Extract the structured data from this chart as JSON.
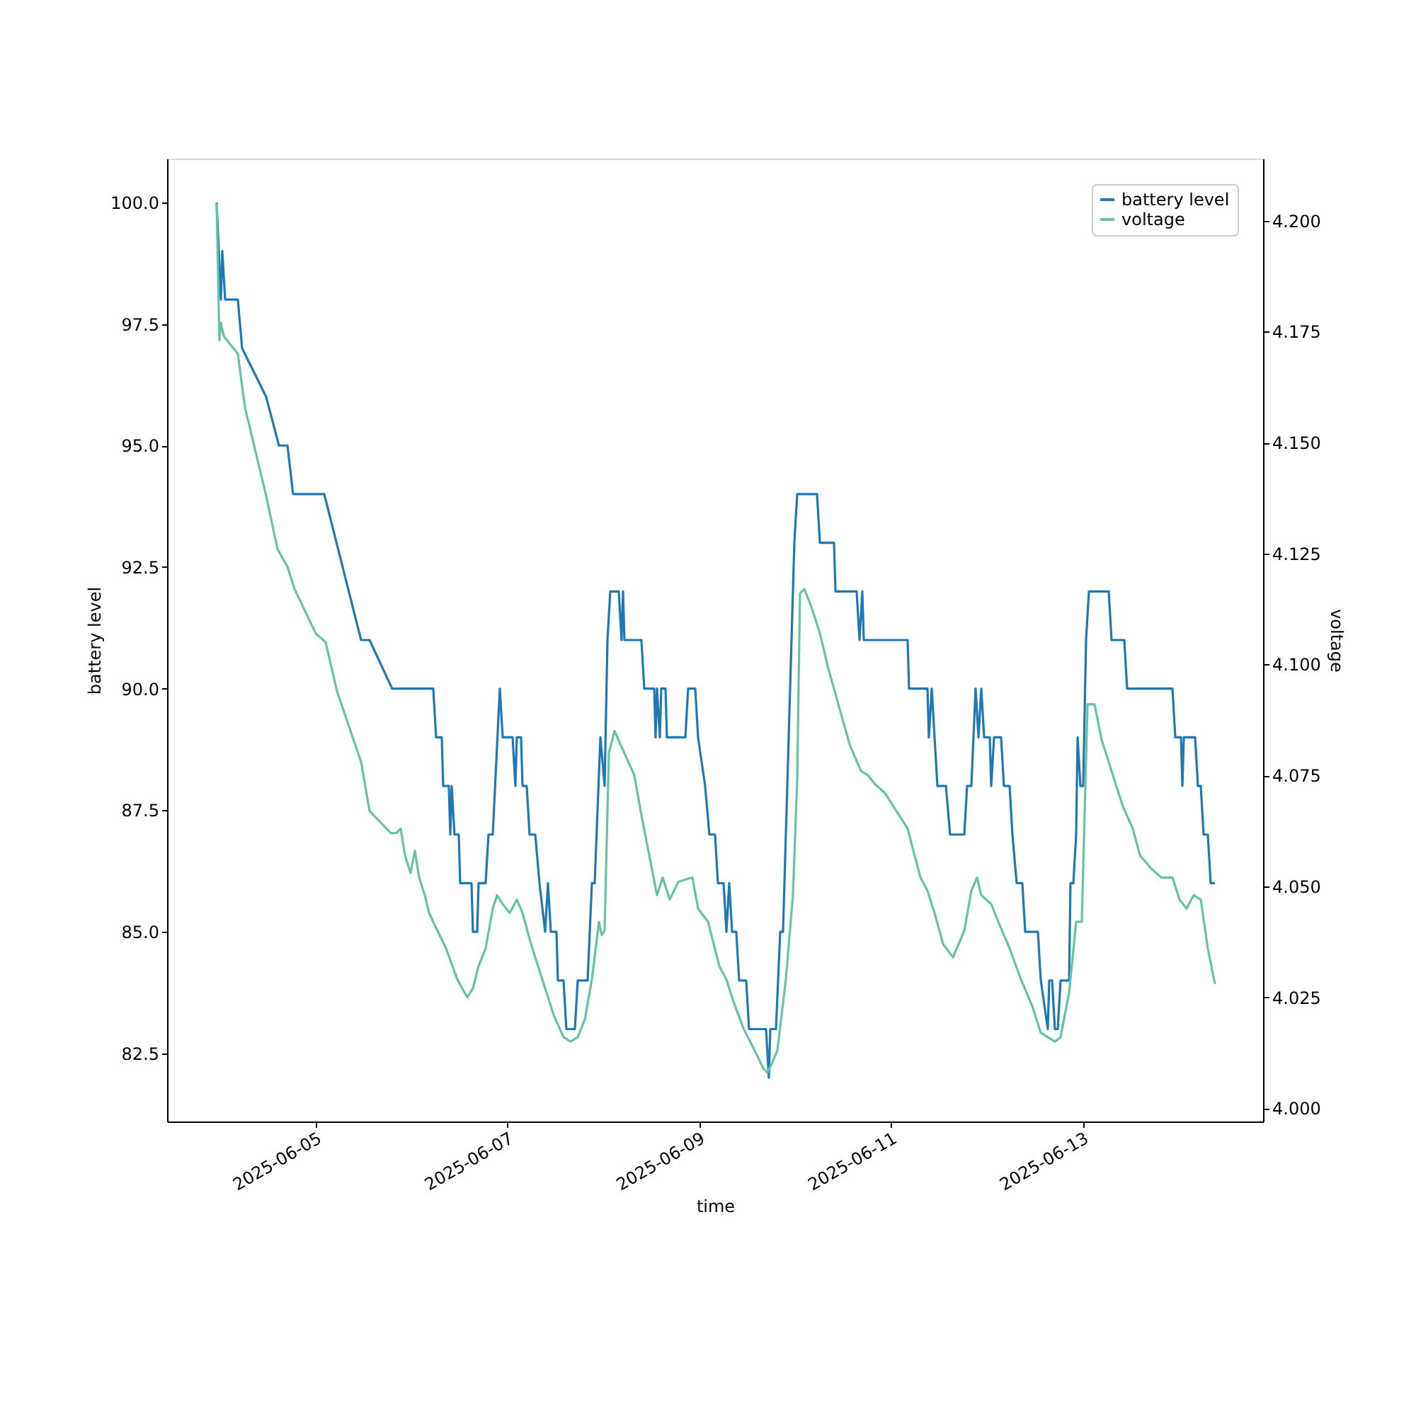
{
  "chart_data": {
    "type": "line",
    "xlabel": "time",
    "ylabel": "battery level",
    "y2label": "voltage",
    "xlim": [
      "2025-06-03T10:47",
      "2025-06-14T21:10"
    ],
    "xticks": [
      "2025-06-05",
      "2025-06-07",
      "2025-06-09",
      "2025-06-11",
      "2025-06-13"
    ],
    "ylim": [
      81.1,
      100.9
    ],
    "yticks": [
      {
        "value": 82.5,
        "label": "82.5"
      },
      {
        "value": 85,
        "label": "85.0"
      },
      {
        "value": 87.5,
        "label": "87.5"
      },
      {
        "value": 90,
        "label": "90.0"
      },
      {
        "value": 92.5,
        "label": "92.5"
      },
      {
        "value": 95,
        "label": "95.0"
      },
      {
        "value": 97.5,
        "label": "97.5"
      },
      {
        "value": 100,
        "label": "100.0"
      }
    ],
    "y2lim": [
      3.997,
      4.214
    ],
    "y2ticks": [
      {
        "value": 4.0,
        "label": "4.000"
      },
      {
        "value": 4.025,
        "label": "4.025"
      },
      {
        "value": 4.05,
        "label": "4.050"
      },
      {
        "value": 4.075,
        "label": "4.075"
      },
      {
        "value": 4.1,
        "label": "4.100"
      },
      {
        "value": 4.125,
        "label": "4.125"
      },
      {
        "value": 4.15,
        "label": "4.150"
      },
      {
        "value": 4.175,
        "label": "4.175"
      },
      {
        "value": 4.2,
        "label": "4.200"
      }
    ],
    "legend": "top right",
    "marker": "none",
    "line_style": "solid",
    "series": [
      {
        "name": "battery level",
        "color": "#1f77b4",
        "x": [
          "2025-06-03T23:11",
          "2025-06-04T00:15",
          "2025-06-04T00:36",
          "2025-06-04T01:19",
          "2025-06-04T04:30",
          "2025-06-04T05:34",
          "2025-06-04T11:35",
          "2025-06-04T14:47",
          "2025-06-04T16:55",
          "2025-06-04T18:20",
          "2025-06-05T02:08",
          "2025-06-05T11:21",
          "2025-06-05T13:28",
          "2025-06-05T19:08",
          "2025-06-06T05:25",
          "2025-06-06T06:08",
          "2025-06-06T07:33",
          "2025-06-06T07:54",
          "2025-06-06T09:19",
          "2025-06-06T09:41",
          "2025-06-06T10:02",
          "2025-06-06T10:44",
          "2025-06-06T11:48",
          "2025-06-06T12:10",
          "2025-06-06T15:00",
          "2025-06-06T15:21",
          "2025-06-06T16:25",
          "2025-06-06T16:46",
          "2025-06-06T18:32",
          "2025-06-06T19:15",
          "2025-06-06T20:19",
          "2025-06-06T22:05",
          "2025-06-06T22:48",
          "2025-06-07T01:17",
          "2025-06-07T01:59",
          "2025-06-07T02:20",
          "2025-06-07T03:24",
          "2025-06-07T03:46",
          "2025-06-07T04:49",
          "2025-06-07T05:32",
          "2025-06-07T06:57",
          "2025-06-07T08:01",
          "2025-06-07T09:26",
          "2025-06-07T10:08",
          "2025-06-07T10:51",
          "2025-06-07T12:16",
          "2025-06-07T12:37",
          "2025-06-07T14:02",
          "2025-06-07T14:45",
          "2025-06-07T16:53",
          "2025-06-07T17:35",
          "2025-06-07T20:04",
          "2025-06-07T21:08",
          "2025-06-07T21:50",
          "2025-06-07T23:16",
          "2025-06-08T00:19",
          "2025-06-08T01:02",
          "2025-06-08T01:44",
          "2025-06-08T03:52",
          "2025-06-08T04:34",
          "2025-06-08T04:56",
          "2025-06-08T05:17",
          "2025-06-08T09:32",
          "2025-06-08T10:15",
          "2025-06-08T12:44",
          "2025-06-08T13:05",
          "2025-06-08T13:26",
          "2025-06-08T14:09",
          "2025-06-08T14:30",
          "2025-06-08T15:34",
          "2025-06-08T15:55",
          "2025-06-08T20:32",
          "2025-06-08T21:14",
          "2025-06-08T23:01",
          "2025-06-08T23:43",
          "2025-06-09T01:29",
          "2025-06-09T02:33",
          "2025-06-09T03:58",
          "2025-06-09T04:41",
          "2025-06-09T06:06",
          "2025-06-09T06:49",
          "2025-06-09T07:31",
          "2025-06-09T08:14",
          "2025-06-09T09:17",
          "2025-06-09T10:00",
          "2025-06-09T11:46",
          "2025-06-09T12:29",
          "2025-06-09T16:44",
          "2025-06-09T17:26",
          "2025-06-09T17:48",
          "2025-06-09T19:13",
          "2025-06-09T20:17",
          "2025-06-09T20:59",
          "2025-06-09T22:03",
          "2025-06-09T23:49",
          "2025-06-10T00:32",
          "2025-06-10T05:30",
          "2025-06-10T06:13",
          "2025-06-10T09:45",
          "2025-06-10T10:07",
          "2025-06-10T15:25",
          "2025-06-10T16:08",
          "2025-06-10T16:50",
          "2025-06-10T17:12",
          "2025-06-11T04:11",
          "2025-06-11T04:32",
          "2025-06-11T09:09",
          "2025-06-11T09:30",
          "2025-06-11T10:13",
          "2025-06-11T11:38",
          "2025-06-11T13:46",
          "2025-06-11T14:49",
          "2025-06-11T18:22",
          "2025-06-11T19:04",
          "2025-06-11T20:08",
          "2025-06-11T21:12",
          "2025-06-11T21:55",
          "2025-06-11T22:37",
          "2025-06-11T23:20",
          "2025-06-12T00:45",
          "2025-06-12T01:06",
          "2025-06-12T01:49",
          "2025-06-12T03:35",
          "2025-06-12T04:17",
          "2025-06-12T05:43",
          "2025-06-12T06:25",
          "2025-06-12T07:29",
          "2025-06-12T08:54",
          "2025-06-12T09:37",
          "2025-06-12T12:48",
          "2025-06-12T13:31",
          "2025-06-12T15:17",
          "2025-06-12T15:38",
          "2025-06-12T16:21",
          "2025-06-12T17:03",
          "2025-06-12T17:46",
          "2025-06-12T18:28",
          "2025-06-12T20:36",
          "2025-06-12T20:57",
          "2025-06-12T21:40",
          "2025-06-12T22:22",
          "2025-06-12T22:44",
          "2025-06-12T23:26",
          "2025-06-13T00:08",
          "2025-06-13T00:51",
          "2025-06-13T01:34",
          "2025-06-13T06:32",
          "2025-06-13T07:14",
          "2025-06-13T10:25",
          "2025-06-13T11:08",
          "2025-06-13T22:29",
          "2025-06-13T23:11",
          "2025-06-14T00:37",
          "2025-06-14T00:58",
          "2025-06-14T01:19",
          "2025-06-14T04:09",
          "2025-06-14T04:52",
          "2025-06-14T05:34",
          "2025-06-14T06:17",
          "2025-06-14T07:20",
          "2025-06-14T08:03",
          "2025-06-14T09:07"
        ],
        "values": [
          100,
          98,
          99,
          98,
          98,
          97,
          96,
          95,
          95,
          94,
          94,
          91,
          91,
          90,
          90,
          89,
          89,
          88,
          88,
          87,
          88,
          87,
          87,
          86,
          86,
          85,
          85,
          86,
          86,
          87,
          87,
          90,
          89,
          89,
          88,
          89,
          89,
          88,
          88,
          87,
          87,
          86,
          85,
          86,
          85,
          85,
          84,
          84,
          83,
          83,
          84,
          84,
          86,
          86,
          89,
          88,
          91,
          92,
          92,
          91,
          92,
          91,
          91,
          90,
          90,
          89,
          90,
          89,
          90,
          90,
          89,
          89,
          90,
          90,
          89,
          88,
          87,
          87,
          86,
          86,
          85,
          86,
          85,
          85,
          84,
          84,
          83,
          83,
          82,
          83,
          83,
          85,
          85,
          88,
          93,
          94,
          94,
          93,
          93,
          92,
          92,
          91,
          92,
          91,
          91,
          90,
          90,
          89,
          90,
          88,
          88,
          87,
          87,
          88,
          88,
          90,
          89,
          90,
          89,
          89,
          88,
          89,
          89,
          88,
          88,
          87,
          86,
          86,
          85,
          85,
          84,
          83,
          84,
          84,
          83,
          83,
          84,
          84,
          86,
          86,
          87,
          89,
          88,
          88,
          91,
          92,
          92,
          91,
          91,
          90,
          90,
          89,
          89,
          88,
          89,
          89,
          88,
          88,
          87,
          87,
          86,
          86
        ]
      },
      {
        "name": "voltage",
        "color": "#66c2a5",
        "axis": "y2",
        "x": [
          "2025-06-03T23:11",
          "2025-06-03T23:53",
          "2025-06-04T00:15",
          "2025-06-04T00:58",
          "2025-06-04T04:30",
          "2025-06-04T06:16",
          "2025-06-04T11:35",
          "2025-06-04T14:26",
          "2025-06-04T16:55",
          "2025-06-04T18:41",
          "2025-06-05T00:00",
          "2025-06-05T02:29",
          "2025-06-05T05:19",
          "2025-06-05T11:21",
          "2025-06-05T13:28",
          "2025-06-05T18:47",
          "2025-06-05T20:12",
          "2025-06-05T21:16",
          "2025-06-05T22:20",
          "2025-06-05T23:45",
          "2025-06-06T00:49",
          "2025-06-06T01:53",
          "2025-06-06T03:18",
          "2025-06-06T04:22",
          "2025-06-06T06:29",
          "2025-06-06T08:37",
          "2025-06-06T11:27",
          "2025-06-06T13:56",
          "2025-06-06T15:21",
          "2025-06-06T16:46",
          "2025-06-06T18:32",
          "2025-06-06T20:19",
          "2025-06-06T21:23",
          "2025-06-06T22:48",
          "2025-06-07T00:34",
          "2025-06-07T02:20",
          "2025-06-07T03:46",
          "2025-06-07T05:53",
          "2025-06-07T08:43",
          "2025-06-07T11:34",
          "2025-06-07T14:02",
          "2025-06-07T15:49",
          "2025-06-07T17:35",
          "2025-06-07T19:22",
          "2025-06-07T21:08",
          "2025-06-07T22:54",
          "2025-06-07T23:37",
          "2025-06-08T00:19",
          "2025-06-08T01:23",
          "2025-06-08T02:48",
          "2025-06-08T05:17",
          "2025-06-08T07:46",
          "2025-06-08T09:32",
          "2025-06-08T12:22",
          "2025-06-08T13:26",
          "2025-06-08T14:51",
          "2025-06-08T16:38",
          "2025-06-08T18:45",
          "2025-06-08T22:18",
          "2025-06-08T23:43",
          "2025-06-09T02:12",
          "2025-06-09T05:02",
          "2025-06-09T06:49",
          "2025-06-09T08:35",
          "2025-06-09T11:04",
          "2025-06-09T13:54",
          "2025-06-09T16:02",
          "2025-06-09T17:05",
          "2025-06-09T18:09",
          "2025-06-09T19:34",
          "2025-06-09T21:42",
          "2025-06-09T23:28",
          "2025-06-10T00:32",
          "2025-06-10T01:14",
          "2025-06-10T02:19",
          "2025-06-10T04:05",
          "2025-06-10T06:13",
          "2025-06-10T08:20",
          "2025-06-10T11:10",
          "2025-06-10T13:39",
          "2025-06-10T16:29",
          "2025-06-10T18:16",
          "2025-06-10T20:02",
          "2025-06-10T22:31",
          "2025-06-11T01:21",
          "2025-06-11T04:11",
          "2025-06-11T07:23",
          "2025-06-11T09:09",
          "2025-06-11T10:55",
          "2025-06-11T13:03",
          "2025-06-11T15:32",
          "2025-06-11T18:22",
          "2025-06-11T20:08",
          "2025-06-11T21:34",
          "2025-06-11T22:37",
          "2025-06-12T01:06",
          "2025-06-12T02:52",
          "2025-06-12T05:43",
          "2025-06-12T08:33",
          "2025-06-12T11:23",
          "2025-06-12T13:31",
          "2025-06-12T15:17",
          "2025-06-12T17:03",
          "2025-06-12T18:28",
          "2025-06-12T20:36",
          "2025-06-12T22:22",
          "2025-06-12T23:47",
          "2025-06-13T01:13",
          "2025-06-13T02:59",
          "2025-06-13T04:45",
          "2025-06-13T07:35",
          "2025-06-13T10:04",
          "2025-06-13T12:33",
          "2025-06-13T14:19",
          "2025-06-13T17:10",
          "2025-06-13T19:38",
          "2025-06-13T22:29",
          "2025-06-14T00:15",
          "2025-06-14T02:01",
          "2025-06-14T03:48",
          "2025-06-14T05:34",
          "2025-06-14T07:20",
          "2025-06-14T09:07"
        ],
        "values": [
          4.204,
          4.173,
          4.177,
          4.174,
          4.17,
          4.158,
          4.138,
          4.126,
          4.122,
          4.117,
          4.107,
          4.105,
          4.094,
          4.078,
          4.067,
          4.062,
          4.062,
          4.063,
          4.057,
          4.053,
          4.058,
          4.052,
          4.048,
          4.044,
          4.04,
          4.036,
          4.029,
          4.025,
          4.027,
          4.032,
          4.036,
          4.045,
          4.048,
          4.046,
          4.044,
          4.047,
          4.044,
          4.037,
          4.029,
          4.021,
          4.016,
          4.015,
          4.016,
          4.02,
          4.029,
          4.042,
          4.039,
          4.04,
          4.08,
          4.085,
          4.08,
          4.075,
          4.066,
          4.053,
          4.048,
          4.052,
          4.047,
          4.051,
          4.052,
          4.045,
          4.042,
          4.032,
          4.029,
          4.024,
          4.018,
          4.013,
          4.009,
          4.008,
          4.01,
          4.013,
          4.029,
          4.048,
          4.074,
          4.116,
          4.117,
          4.113,
          4.107,
          4.099,
          4.09,
          4.082,
          4.076,
          4.075,
          4.073,
          4.071,
          4.067,
          4.063,
          4.052,
          4.049,
          4.044,
          4.037,
          4.034,
          4.04,
          4.049,
          4.052,
          4.048,
          4.046,
          4.042,
          4.036,
          4.029,
          4.023,
          4.017,
          4.016,
          4.015,
          4.016,
          4.026,
          4.042,
          4.042,
          4.091,
          4.091,
          4.083,
          4.075,
          4.068,
          4.063,
          4.057,
          4.054,
          4.052,
          4.052,
          4.047,
          4.045,
          4.048,
          4.047,
          4.036,
          4.028
        ]
      }
    ]
  }
}
